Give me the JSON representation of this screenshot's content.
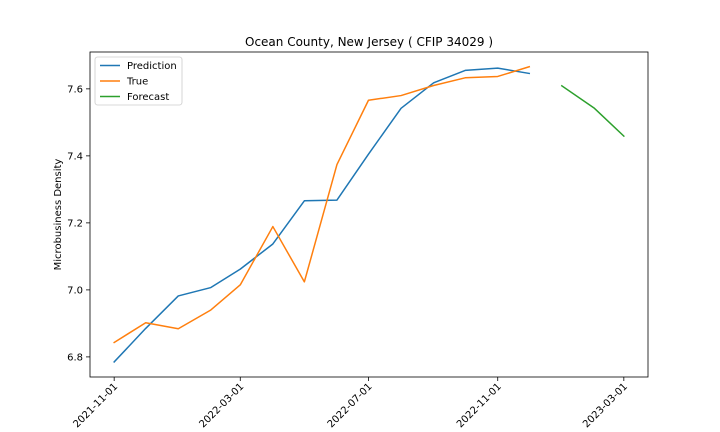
{
  "chart_data": {
    "type": "line",
    "title": "Ocean County, New Jersey ( CFIP 34029 )",
    "xlabel": "",
    "ylabel": "Microbusiness Density",
    "x_ticks": [
      "2021-11-01",
      "2022-03-01",
      "2022-07-01",
      "2022-11-01",
      "2023-03-01"
    ],
    "y_ticks": [
      6.8,
      7.0,
      7.2,
      7.4,
      7.6
    ],
    "ylim": [
      6.74,
      7.71
    ],
    "xlim": [
      "2021-10-09",
      "2023-03-24"
    ],
    "grid": false,
    "legend_position": "top-left",
    "series": [
      {
        "name": "Prediction",
        "color": "#1f77b4",
        "x": [
          "2021-11-01",
          "2021-12-01",
          "2022-01-01",
          "2022-02-01",
          "2022-03-01",
          "2022-04-01",
          "2022-05-01",
          "2022-06-01",
          "2022-07-01",
          "2022-08-01",
          "2022-09-01",
          "2022-10-01",
          "2022-11-01",
          "2022-12-01"
        ],
        "y": [
          6.785,
          6.885,
          6.982,
          7.007,
          7.062,
          7.137,
          7.266,
          7.268,
          7.405,
          7.542,
          7.618,
          7.655,
          7.662,
          7.646
        ]
      },
      {
        "name": "True",
        "color": "#ff7f0e",
        "x": [
          "2021-11-01",
          "2021-12-01",
          "2022-01-01",
          "2022-02-01",
          "2022-03-01",
          "2022-04-01",
          "2022-05-01",
          "2022-06-01",
          "2022-07-01",
          "2022-08-01",
          "2022-09-01",
          "2022-10-01",
          "2022-11-01",
          "2022-12-01"
        ],
        "y": [
          6.843,
          6.902,
          6.884,
          6.94,
          7.015,
          7.189,
          7.024,
          7.374,
          7.566,
          7.58,
          7.61,
          7.633,
          7.637,
          7.666
        ]
      },
      {
        "name": "Forecast",
        "color": "#2ca02c",
        "x": [
          "2023-01-01",
          "2023-02-01",
          "2023-03-01"
        ],
        "y": [
          7.609,
          7.542,
          7.459
        ]
      }
    ]
  }
}
